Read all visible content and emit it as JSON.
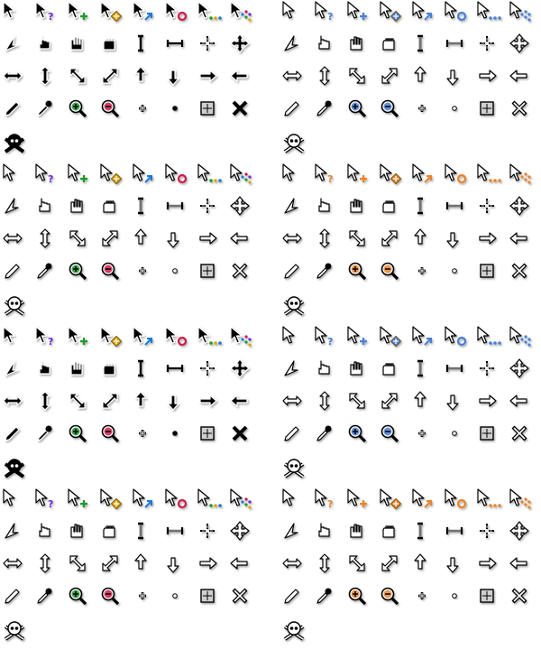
{
  "cursor_grid": {
    "columns": [
      "arrow",
      "help",
      "add",
      "copy",
      "link",
      "busy",
      "working",
      "context",
      "drag",
      "pointer",
      "open-hand",
      "grab",
      "text",
      "hresize",
      "crosshair",
      "move",
      "ew-resize",
      "ns-resize",
      "nwse-resize",
      "nesw-resize",
      "up-arrow",
      "down-arrow",
      "right-arrow",
      "left-arrow",
      "pencil",
      "pipette",
      "zoom-in",
      "zoom-out",
      "plus",
      "dot",
      "cell",
      "no-drop",
      "pirate"
    ],
    "themes": [
      {
        "variant": "black",
        "accent": "#7a2ab8",
        "help_color": "#6a2bd8",
        "add_color": "#1a9a2a",
        "copy_color": "#d9a400",
        "link_color": "#1a7ad6",
        "busy_color": "#cc1a4a"
      },
      {
        "variant": "white",
        "accent": "#4a7fd6",
        "help_color": "#4a7fd6",
        "add_color": "#4a7fd6",
        "copy_color": "#4a7fd6",
        "link_color": "#4a7fd6",
        "busy_color": "#4a7fd6"
      },
      {
        "variant": "white",
        "accent": "#7a2ab8",
        "help_color": "#6a2bd8",
        "add_color": "#1a9a2a",
        "copy_color": "#d9a400",
        "link_color": "#1a7ad6",
        "busy_color": "#cc1a4a"
      },
      {
        "variant": "white",
        "accent": "#e8842a",
        "help_color": "#e8842a",
        "add_color": "#e8842a",
        "copy_color": "#e8842a",
        "link_color": "#e8842a",
        "busy_color": "#e8842a"
      },
      {
        "variant": "black",
        "accent": "#7a2ab8",
        "help_color": "#6a2bd8",
        "add_color": "#1a9a2a",
        "copy_color": "#d9a400",
        "link_color": "#1a7ad6",
        "busy_color": "#cc1a4a"
      },
      {
        "variant": "white",
        "accent": "#4a7fd6",
        "help_color": "#4a7fd6",
        "add_color": "#4a7fd6",
        "copy_color": "#4a7fd6",
        "link_color": "#4a7fd6",
        "busy_color": "#4a7fd6"
      },
      {
        "variant": "white",
        "accent": "#7a2ab8",
        "help_color": "#6a2bd8",
        "add_color": "#1a9a2a",
        "copy_color": "#d9a400",
        "link_color": "#1a7ad6",
        "busy_color": "#cc1a4a"
      },
      {
        "variant": "white",
        "accent": "#e8842a",
        "help_color": "#e8842a",
        "add_color": "#e8842a",
        "copy_color": "#e8842a",
        "link_color": "#e8842a",
        "busy_color": "#e8842a"
      }
    ]
  }
}
